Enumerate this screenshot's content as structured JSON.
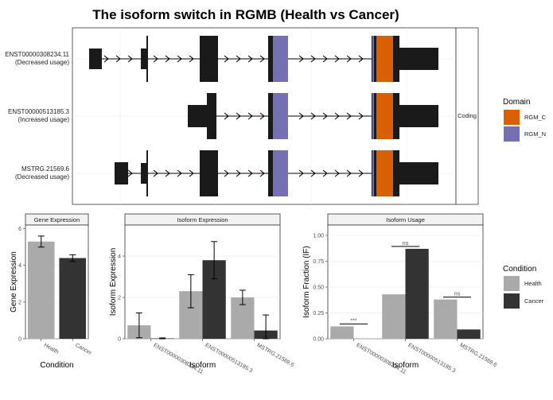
{
  "title": "The isoform switch in RGMB (Health vs Cancer)",
  "colors": {
    "exon": "#1a1a1a",
    "rgm_c": "#d95f02",
    "rgm_n": "#7570b3",
    "health": "#aaaaaa",
    "cancer": "#333333",
    "strip_bg": "#f2f2f2"
  },
  "structure_panel": {
    "strip_label": "Coding",
    "isoforms": [
      {
        "id": "ENST00000308234.11",
        "note": "(Decreased usage)"
      },
      {
        "id": "ENST00000513185.3",
        "note": "(Increased usage)"
      },
      {
        "id": "MSTRG.21569.6",
        "note": "(Decreased usage)"
      }
    ]
  },
  "domain_legend": {
    "title": "Domain",
    "items": [
      {
        "label": "RGM_C",
        "color": "#d95f02"
      },
      {
        "label": "RGM_N",
        "color": "#7570b3"
      }
    ]
  },
  "condition_legend": {
    "title": "Condition",
    "items": [
      {
        "label": "Health",
        "color": "#aaaaaa"
      },
      {
        "label": "Cancer",
        "color": "#333333"
      }
    ]
  },
  "chart_data": [
    {
      "type": "bar",
      "title": "Gene Expression",
      "xlabel": "Condition",
      "ylabel": "Gene Expression",
      "categories": [
        "Health",
        "Cancer"
      ],
      "values": [
        5.3,
        4.4
      ],
      "errors": [
        0.3,
        0.18
      ],
      "ylim": [
        0,
        6.2
      ],
      "yticks": [
        0,
        2,
        4,
        6
      ]
    },
    {
      "type": "bar",
      "title": "Isoform Expression",
      "xlabel": "Isoform",
      "ylabel": "Isoform Expression",
      "categories": [
        "ENST00000308234.11",
        "ENST00000513185.3",
        "MSTRG.21569.6"
      ],
      "series": [
        {
          "name": "Health",
          "values": [
            0.65,
            2.3,
            2.0
          ],
          "errors": [
            0.6,
            0.8,
            0.35
          ]
        },
        {
          "name": "Cancer",
          "values": [
            0.02,
            3.8,
            0.4
          ],
          "errors": [
            0.02,
            0.9,
            0.75
          ]
        }
      ],
      "ylim": [
        0,
        5.5
      ],
      "yticks": [
        0,
        2,
        4
      ]
    },
    {
      "type": "bar",
      "title": "Isoform Usage",
      "xlabel": "Isoform",
      "ylabel": "Isoform Fraction (IF)",
      "categories": [
        "ENST00000308234.11",
        "ENST00000513185.3",
        "MSTRG.21569.6"
      ],
      "series": [
        {
          "name": "Health",
          "values": [
            0.12,
            0.43,
            0.38
          ]
        },
        {
          "name": "Cancer",
          "values": [
            0.0,
            0.87,
            0.09
          ]
        }
      ],
      "significance": [
        "***",
        "ns",
        "ns"
      ],
      "ylim": [
        0,
        1.1
      ],
      "yticks": [
        0.0,
        0.25,
        0.5,
        0.75,
        1.0
      ],
      "ytick_labels": [
        "0.00",
        "0.25",
        "0.50",
        "0.75",
        "1.00"
      ]
    }
  ]
}
